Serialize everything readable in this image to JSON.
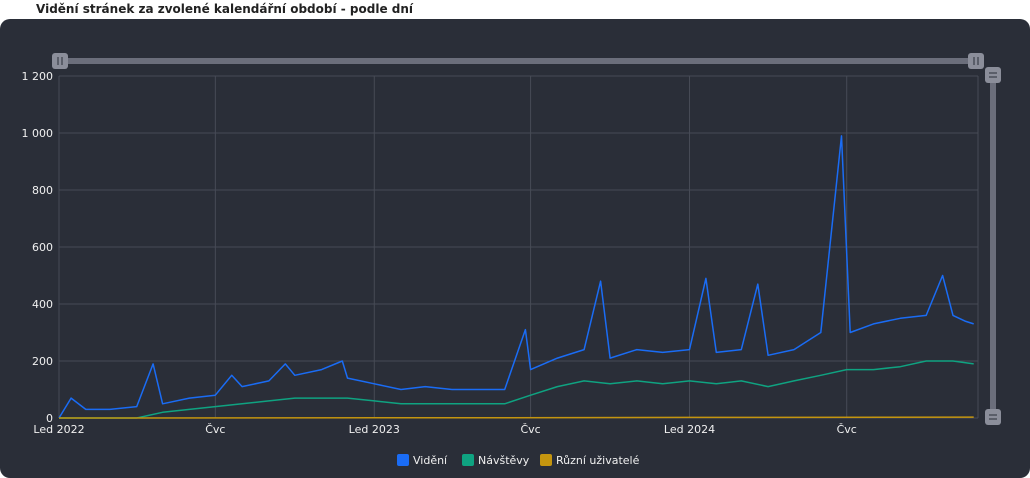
{
  "page": {
    "title": "Vidění stránek za zvolené kalendářní období - podle dní"
  },
  "colors": {
    "background": "#2a2e38",
    "grid": "#474b56",
    "slider": "#6b6e7b",
    "handle": "#8b8e9a",
    "text": "#f0f0f0"
  },
  "chart_data": {
    "type": "line",
    "title": "",
    "xlabel": "",
    "ylabel": "",
    "ylim": [
      0,
      1200
    ],
    "yticks": [
      0,
      200,
      400,
      600,
      800,
      1000,
      1200
    ],
    "ytick_labels": [
      "0",
      "200",
      "400",
      "600",
      "800",
      "1 000",
      "1 200"
    ],
    "xlim": [
      "2022-01-01",
      "2024-11-30"
    ],
    "xticks": [
      {
        "date": "2022-01-01",
        "label": "Led 2022"
      },
      {
        "date": "2022-07-01",
        "label": "Čvc"
      },
      {
        "date": "2023-01-01",
        "label": "Led 2023"
      },
      {
        "date": "2023-07-01",
        "label": "Čvc"
      },
      {
        "date": "2024-01-01",
        "label": "Led 2024"
      },
      {
        "date": "2024-07-01",
        "label": "Čvc"
      }
    ],
    "legend_position": "bottom-center",
    "grid": true,
    "series": [
      {
        "name": "Vidění",
        "color": "#1a6cf5",
        "points": [
          [
            "2022-01-01",
            0
          ],
          [
            "2022-01-15",
            70
          ],
          [
            "2022-02-01",
            30
          ],
          [
            "2022-03-01",
            30
          ],
          [
            "2022-04-01",
            40
          ],
          [
            "2022-04-20",
            190
          ],
          [
            "2022-05-01",
            50
          ],
          [
            "2022-06-01",
            70
          ],
          [
            "2022-07-01",
            80
          ],
          [
            "2022-07-20",
            150
          ],
          [
            "2022-08-01",
            110
          ],
          [
            "2022-09-01",
            130
          ],
          [
            "2022-09-20",
            190
          ],
          [
            "2022-10-01",
            150
          ],
          [
            "2022-11-01",
            170
          ],
          [
            "2022-11-25",
            200
          ],
          [
            "2022-12-01",
            140
          ],
          [
            "2023-01-01",
            120
          ],
          [
            "2023-02-01",
            100
          ],
          [
            "2023-03-01",
            110
          ],
          [
            "2023-04-01",
            100
          ],
          [
            "2023-05-01",
            100
          ],
          [
            "2023-06-01",
            100
          ],
          [
            "2023-06-25",
            310
          ],
          [
            "2023-07-01",
            170
          ],
          [
            "2023-08-01",
            210
          ],
          [
            "2023-09-01",
            240
          ],
          [
            "2023-09-20",
            480
          ],
          [
            "2023-10-01",
            210
          ],
          [
            "2023-11-01",
            240
          ],
          [
            "2023-12-01",
            230
          ],
          [
            "2024-01-01",
            240
          ],
          [
            "2024-01-20",
            490
          ],
          [
            "2024-02-01",
            230
          ],
          [
            "2024-03-01",
            240
          ],
          [
            "2024-03-20",
            470
          ],
          [
            "2024-04-01",
            220
          ],
          [
            "2024-05-01",
            240
          ],
          [
            "2024-06-01",
            300
          ],
          [
            "2024-06-25",
            990
          ],
          [
            "2024-07-05",
            300
          ],
          [
            "2024-08-01",
            330
          ],
          [
            "2024-09-01",
            350
          ],
          [
            "2024-10-01",
            360
          ],
          [
            "2024-10-20",
            500
          ],
          [
            "2024-11-01",
            360
          ],
          [
            "2024-11-15",
            340
          ],
          [
            "2024-11-25",
            330
          ]
        ]
      },
      {
        "name": "Návštěvy",
        "color": "#0fa381",
        "points": [
          [
            "2022-01-01",
            0
          ],
          [
            "2022-04-01",
            0
          ],
          [
            "2022-05-01",
            20
          ],
          [
            "2022-06-01",
            30
          ],
          [
            "2022-07-01",
            40
          ],
          [
            "2022-08-01",
            50
          ],
          [
            "2022-09-01",
            60
          ],
          [
            "2022-10-01",
            70
          ],
          [
            "2022-11-01",
            70
          ],
          [
            "2022-12-01",
            70
          ],
          [
            "2023-01-01",
            60
          ],
          [
            "2023-02-01",
            50
          ],
          [
            "2023-03-01",
            50
          ],
          [
            "2023-04-01",
            50
          ],
          [
            "2023-05-01",
            50
          ],
          [
            "2023-06-01",
            50
          ],
          [
            "2023-07-01",
            80
          ],
          [
            "2023-08-01",
            110
          ],
          [
            "2023-09-01",
            130
          ],
          [
            "2023-10-01",
            120
          ],
          [
            "2023-11-01",
            130
          ],
          [
            "2023-12-01",
            120
          ],
          [
            "2024-01-01",
            130
          ],
          [
            "2024-02-01",
            120
          ],
          [
            "2024-03-01",
            130
          ],
          [
            "2024-04-01",
            110
          ],
          [
            "2024-05-01",
            130
          ],
          [
            "2024-06-01",
            150
          ],
          [
            "2024-07-01",
            170
          ],
          [
            "2024-08-01",
            170
          ],
          [
            "2024-09-01",
            180
          ],
          [
            "2024-10-01",
            200
          ],
          [
            "2024-11-01",
            200
          ],
          [
            "2024-11-25",
            190
          ]
        ]
      },
      {
        "name": "Různí uživatelé",
        "color": "#c4950f",
        "points": [
          [
            "2022-01-01",
            0
          ],
          [
            "2023-06-01",
            1
          ],
          [
            "2024-01-01",
            2
          ],
          [
            "2024-11-25",
            3
          ]
        ]
      }
    ]
  }
}
